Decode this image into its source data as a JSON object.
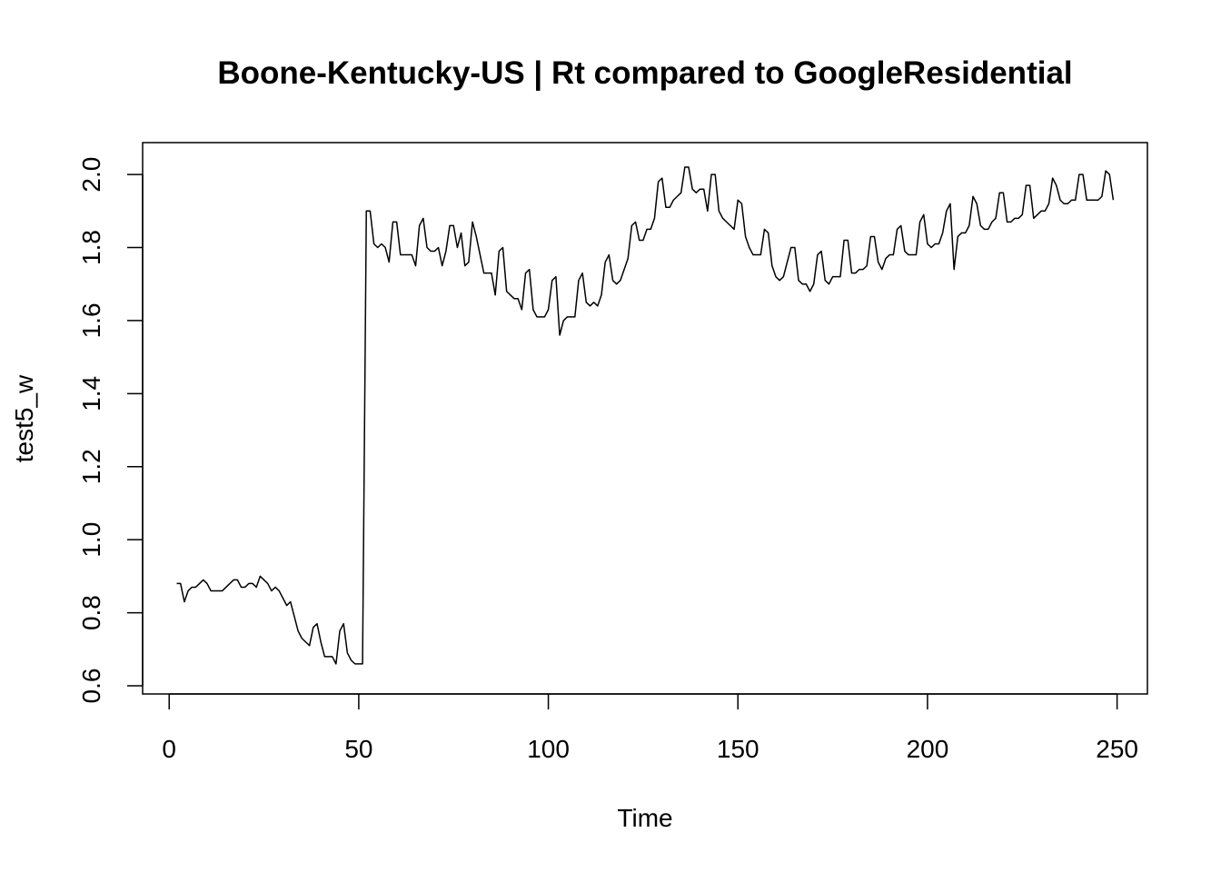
{
  "chart_data": {
    "type": "line",
    "title": "Boone-Kentucky-US | Rt compared to GoogleResidential",
    "xlabel": "Time",
    "ylabel": "test5_w",
    "xlim": [
      -7,
      258
    ],
    "ylim": [
      0.6,
      2.05
    ],
    "x_ticks": [
      0,
      50,
      100,
      150,
      200,
      250
    ],
    "x_tick_labels": [
      "0",
      "50",
      "100",
      "150",
      "200",
      "250"
    ],
    "y_ticks": [
      0.6,
      0.8,
      1.0,
      1.2,
      1.4,
      1.6,
      1.8,
      2.0
    ],
    "y_tick_labels": [
      "0.6",
      "0.8",
      "1.0",
      "1.2",
      "1.4",
      "1.6",
      "1.8",
      "2.0"
    ],
    "grid": false,
    "series": [
      {
        "x_start": 2,
        "values": [
          0.88,
          0.88,
          0.83,
          0.86,
          0.87,
          0.87,
          0.88,
          0.89,
          0.88,
          0.86,
          0.86,
          0.86,
          0.86,
          0.87,
          0.88,
          0.89,
          0.89,
          0.87,
          0.87,
          0.88,
          0.88,
          0.87,
          0.9,
          0.89,
          0.88,
          0.86,
          0.87,
          0.86,
          0.84,
          0.82,
          0.83,
          0.79,
          0.75,
          0.73,
          0.72,
          0.71,
          0.76,
          0.77,
          0.72,
          0.68,
          0.68,
          0.68,
          0.66,
          0.75,
          0.77,
          0.69,
          0.67,
          0.66,
          0.66,
          0.66,
          1.9,
          1.9,
          1.81,
          1.8,
          1.81,
          1.8,
          1.76,
          1.87,
          1.87,
          1.78,
          1.78,
          1.78,
          1.78,
          1.75,
          1.86,
          1.88,
          1.8,
          1.79,
          1.79,
          1.8,
          1.75,
          1.79,
          1.86,
          1.86,
          1.8,
          1.84,
          1.75,
          1.76,
          1.87,
          1.83,
          1.78,
          1.73,
          1.73,
          1.73,
          1.67,
          1.79,
          1.8,
          1.68,
          1.67,
          1.66,
          1.66,
          1.63,
          1.73,
          1.74,
          1.63,
          1.61,
          1.61,
          1.61,
          1.63,
          1.71,
          1.72,
          1.56,
          1.6,
          1.61,
          1.61,
          1.61,
          1.71,
          1.73,
          1.65,
          1.64,
          1.65,
          1.64,
          1.67,
          1.76,
          1.78,
          1.71,
          1.7,
          1.71,
          1.74,
          1.77,
          1.86,
          1.87,
          1.82,
          1.82,
          1.85,
          1.85,
          1.88,
          1.98,
          1.99,
          1.91,
          1.91,
          1.93,
          1.94,
          1.95,
          2.02,
          2.02,
          1.96,
          1.95,
          1.96,
          1.96,
          1.9,
          2.0,
          2.0,
          1.9,
          1.88,
          1.87,
          1.86,
          1.85,
          1.93,
          1.92,
          1.83,
          1.8,
          1.78,
          1.78,
          1.78,
          1.85,
          1.84,
          1.75,
          1.72,
          1.71,
          1.72,
          1.76,
          1.8,
          1.8,
          1.71,
          1.7,
          1.7,
          1.68,
          1.7,
          1.78,
          1.79,
          1.71,
          1.7,
          1.72,
          1.72,
          1.72,
          1.82,
          1.82,
          1.73,
          1.73,
          1.74,
          1.74,
          1.75,
          1.83,
          1.83,
          1.76,
          1.74,
          1.77,
          1.78,
          1.78,
          1.85,
          1.86,
          1.79,
          1.78,
          1.78,
          1.78,
          1.87,
          1.89,
          1.81,
          1.8,
          1.81,
          1.81,
          1.84,
          1.9,
          1.92,
          1.74,
          1.83,
          1.84,
          1.84,
          1.86,
          1.94,
          1.92,
          1.86,
          1.85,
          1.85,
          1.87,
          1.88,
          1.95,
          1.95,
          1.87,
          1.87,
          1.88,
          1.88,
          1.89,
          1.97,
          1.97,
          1.88,
          1.89,
          1.9,
          1.9,
          1.92,
          1.99,
          1.97,
          1.93,
          1.92,
          1.92,
          1.93,
          1.93,
          2.0,
          2.0,
          1.93,
          1.93,
          1.93,
          1.93,
          1.94,
          2.01,
          2.0,
          1.93
        ]
      }
    ]
  }
}
